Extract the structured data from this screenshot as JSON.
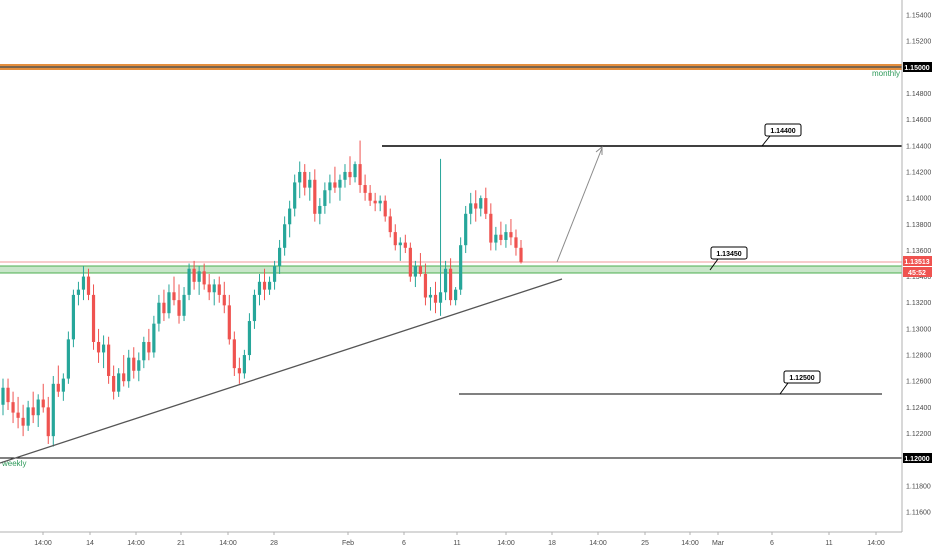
{
  "chart_data": {
    "type": "candlestick",
    "symbol_hint": "EURUSD",
    "ylim": [
      1.1145,
      1.156
    ],
    "y_ticks": [
      "1.15400",
      "1.15200",
      "1.15000",
      "1.14800",
      "1.14600",
      "1.14400",
      "1.14200",
      "1.14000",
      "1.13800",
      "1.13600",
      "1.13400",
      "1.13200",
      "1.13000",
      "1.12800",
      "1.12600",
      "1.12400",
      "1.12200",
      "1.12000",
      "1.11800",
      "1.11600"
    ],
    "x_ticks": [
      "14:00",
      "14",
      "14:00",
      "21",
      "14:00",
      "28",
      "Feb",
      "6",
      "11",
      "14:00",
      "18",
      "14:00",
      "25",
      "14:00",
      "Mar",
      "6",
      "11",
      "14:00"
    ],
    "last_price": "1.13513",
    "countdown": "45:52",
    "levels": [
      {
        "value": 1.15,
        "label": "1.15000",
        "tag": "monthly",
        "color": "#e07a1f",
        "style": "band"
      },
      {
        "value": 1.144,
        "label": "1.14400",
        "color": "#000000",
        "style": "line"
      },
      {
        "value": 1.1345,
        "label": "1.13450",
        "color": "#4caf50",
        "style": "band"
      },
      {
        "value": 1.125,
        "label": "1.12500",
        "color": "#000000",
        "style": "line"
      },
      {
        "value": 1.12,
        "label": "1.12000",
        "tag": "weekly",
        "color": "#000000",
        "style": "line"
      }
    ],
    "callouts": [
      "1.14400",
      "1.13450",
      "1.12500"
    ],
    "trendline": {
      "from_price": 1.12,
      "to_price": 1.1343
    },
    "projection_arrow": {
      "from_price": 1.1352,
      "to_price": 1.144
    },
    "ohlc": [
      [
        1.1242,
        1.1262,
        1.1234,
        1.1255
      ],
      [
        1.1255,
        1.1262,
        1.1238,
        1.1244
      ],
      [
        1.1244,
        1.1252,
        1.1228,
        1.1236
      ],
      [
        1.1236,
        1.1248,
        1.1224,
        1.1232
      ],
      [
        1.1232,
        1.1242,
        1.1218,
        1.1226
      ],
      [
        1.1226,
        1.1245,
        1.1222,
        1.124
      ],
      [
        1.124,
        1.1252,
        1.1228,
        1.1234
      ],
      [
        1.1234,
        1.125,
        1.1225,
        1.1246
      ],
      [
        1.1246,
        1.1258,
        1.1236,
        1.124
      ],
      [
        1.124,
        1.1248,
        1.1212,
        1.1218
      ],
      [
        1.1218,
        1.1264,
        1.121,
        1.1258
      ],
      [
        1.1258,
        1.1272,
        1.1248,
        1.1252
      ],
      [
        1.1252,
        1.1266,
        1.1245,
        1.1262
      ],
      [
        1.1262,
        1.1298,
        1.1258,
        1.1292
      ],
      [
        1.1292,
        1.133,
        1.1286,
        1.1326
      ],
      [
        1.1326,
        1.1336,
        1.1318,
        1.133
      ],
      [
        1.133,
        1.1348,
        1.1322,
        1.134
      ],
      [
        1.134,
        1.1346,
        1.1322,
        1.1326
      ],
      [
        1.1326,
        1.1334,
        1.1284,
        1.129
      ],
      [
        1.129,
        1.13,
        1.1274,
        1.1282
      ],
      [
        1.1282,
        1.1295,
        1.127,
        1.1288
      ],
      [
        1.1288,
        1.1294,
        1.1258,
        1.1264
      ],
      [
        1.1264,
        1.1272,
        1.1246,
        1.1252
      ],
      [
        1.1252,
        1.127,
        1.1248,
        1.1266
      ],
      [
        1.1266,
        1.128,
        1.1256,
        1.126
      ],
      [
        1.126,
        1.1284,
        1.1255,
        1.1278
      ],
      [
        1.1278,
        1.1286,
        1.1262,
        1.1268
      ],
      [
        1.1268,
        1.1282,
        1.126,
        1.1276
      ],
      [
        1.1276,
        1.1294,
        1.127,
        1.129
      ],
      [
        1.129,
        1.13,
        1.1276,
        1.1282
      ],
      [
        1.1282,
        1.131,
        1.1278,
        1.1304
      ],
      [
        1.1304,
        1.1326,
        1.1298,
        1.132
      ],
      [
        1.132,
        1.133,
        1.1306,
        1.1312
      ],
      [
        1.1312,
        1.1334,
        1.1308,
        1.1328
      ],
      [
        1.1328,
        1.134,
        1.1318,
        1.1322
      ],
      [
        1.1322,
        1.1334,
        1.1304,
        1.131
      ],
      [
        1.131,
        1.1332,
        1.1306,
        1.1326
      ],
      [
        1.1326,
        1.135,
        1.1322,
        1.1346
      ],
      [
        1.1346,
        1.1352,
        1.133,
        1.1336
      ],
      [
        1.1336,
        1.1348,
        1.1326,
        1.1344
      ],
      [
        1.1344,
        1.135,
        1.133,
        1.1334
      ],
      [
        1.1334,
        1.1342,
        1.1322,
        1.1328
      ],
      [
        1.1328,
        1.1338,
        1.1318,
        1.1334
      ],
      [
        1.1334,
        1.134,
        1.132,
        1.1326
      ],
      [
        1.1326,
        1.1336,
        1.1312,
        1.1318
      ],
      [
        1.1318,
        1.1326,
        1.1288,
        1.1292
      ],
      [
        1.1292,
        1.1298,
        1.1264,
        1.127
      ],
      [
        1.127,
        1.1278,
        1.1258,
        1.1266
      ],
      [
        1.1266,
        1.1284,
        1.1262,
        1.128
      ],
      [
        1.128,
        1.1312,
        1.1276,
        1.1306
      ],
      [
        1.1306,
        1.133,
        1.13,
        1.1326
      ],
      [
        1.1326,
        1.1342,
        1.1318,
        1.1336
      ],
      [
        1.1336,
        1.1346,
        1.1322,
        1.133
      ],
      [
        1.133,
        1.134,
        1.1326,
        1.1336
      ],
      [
        1.1336,
        1.1352,
        1.133,
        1.1348
      ],
      [
        1.1348,
        1.1368,
        1.1342,
        1.1362
      ],
      [
        1.1362,
        1.1386,
        1.1356,
        1.138
      ],
      [
        1.138,
        1.1398,
        1.137,
        1.1392
      ],
      [
        1.1392,
        1.1418,
        1.1386,
        1.1412
      ],
      [
        1.1412,
        1.1428,
        1.14,
        1.142
      ],
      [
        1.142,
        1.1426,
        1.1402,
        1.1408
      ],
      [
        1.1408,
        1.142,
        1.1398,
        1.1414
      ],
      [
        1.1414,
        1.1422,
        1.1382,
        1.1388
      ],
      [
        1.1388,
        1.14,
        1.138,
        1.1394
      ],
      [
        1.1394,
        1.1412,
        1.1388,
        1.1406
      ],
      [
        1.1406,
        1.1418,
        1.1396,
        1.1412
      ],
      [
        1.1412,
        1.1424,
        1.1404,
        1.1408
      ],
      [
        1.1408,
        1.1418,
        1.1398,
        1.1414
      ],
      [
        1.1414,
        1.1426,
        1.1408,
        1.142
      ],
      [
        1.142,
        1.1432,
        1.141,
        1.1416
      ],
      [
        1.1416,
        1.1428,
        1.1412,
        1.1426
      ],
      [
        1.1426,
        1.1444,
        1.1404,
        1.141
      ],
      [
        1.141,
        1.1418,
        1.1398,
        1.1404
      ],
      [
        1.1404,
        1.141,
        1.1394,
        1.1398
      ],
      [
        1.1398,
        1.1404,
        1.139,
        1.1396
      ],
      [
        1.1396,
        1.1402,
        1.139,
        1.1398
      ],
      [
        1.1398,
        1.1402,
        1.1382,
        1.1386
      ],
      [
        1.1386,
        1.1392,
        1.137,
        1.1374
      ],
      [
        1.1374,
        1.138,
        1.136,
        1.1364
      ],
      [
        1.1364,
        1.137,
        1.1352,
        1.1366
      ],
      [
        1.1366,
        1.1372,
        1.1358,
        1.1362
      ],
      [
        1.1362,
        1.1366,
        1.1336,
        1.134
      ],
      [
        1.134,
        1.1352,
        1.1332,
        1.1348
      ],
      [
        1.1348,
        1.1358,
        1.134,
        1.1342
      ],
      [
        1.1342,
        1.135,
        1.1318,
        1.1324
      ],
      [
        1.1324,
        1.1332,
        1.1314,
        1.1326
      ],
      [
        1.1326,
        1.1336,
        1.1312,
        1.132
      ],
      [
        1.132,
        1.143,
        1.131,
        1.1328
      ],
      [
        1.1328,
        1.1352,
        1.1322,
        1.1346
      ],
      [
        1.1346,
        1.1354,
        1.1318,
        1.1322
      ],
      [
        1.1322,
        1.1332,
        1.1318,
        1.133
      ],
      [
        1.133,
        1.137,
        1.1326,
        1.1364
      ],
      [
        1.1364,
        1.1394,
        1.1358,
        1.1388
      ],
      [
        1.1388,
        1.1404,
        1.138,
        1.1396
      ],
      [
        1.1396,
        1.1406,
        1.1382,
        1.1392
      ],
      [
        1.1392,
        1.1402,
        1.1386,
        1.14
      ],
      [
        1.14,
        1.1408,
        1.1384,
        1.1388
      ],
      [
        1.1388,
        1.1396,
        1.136,
        1.1366
      ],
      [
        1.1366,
        1.1378,
        1.136,
        1.1372
      ],
      [
        1.1372,
        1.1382,
        1.1364,
        1.1368
      ],
      [
        1.1368,
        1.138,
        1.1362,
        1.1374
      ],
      [
        1.1374,
        1.1384,
        1.1364,
        1.137
      ],
      [
        1.137,
        1.1376,
        1.1356,
        1.1362
      ],
      [
        1.1362,
        1.1368,
        1.135,
        1.1351
      ]
    ]
  }
}
